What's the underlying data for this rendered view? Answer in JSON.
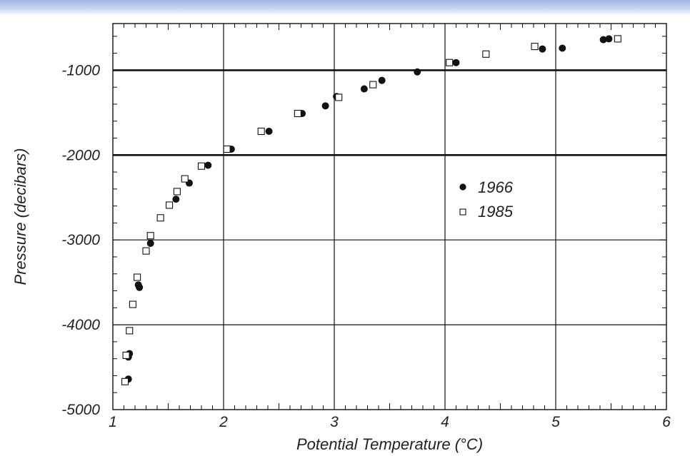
{
  "chart_data": {
    "type": "scatter",
    "xlabel": "Potential Temperature (°C)",
    "ylabel": "Pressure (decibars)",
    "xlim": [
      1,
      6
    ],
    "ylim": [
      -5000,
      -450
    ],
    "x_ticks": [
      "1",
      "2",
      "3",
      "4",
      "5",
      "6"
    ],
    "y_ticks": [
      "-1000",
      "-2000",
      "-3000",
      "-4000",
      "-5000"
    ],
    "grid": true,
    "legend_position": "right-middle",
    "series": [
      {
        "name": "1966",
        "marker": "filled-circle",
        "color": "#111111",
        "points": [
          [
            5.48,
            -630
          ],
          [
            5.43,
            -640
          ],
          [
            5.06,
            -740
          ],
          [
            4.88,
            -750
          ],
          [
            4.1,
            -910
          ],
          [
            3.75,
            -1020
          ],
          [
            3.43,
            -1120
          ],
          [
            3.27,
            -1220
          ],
          [
            3.02,
            -1310
          ],
          [
            2.92,
            -1420
          ],
          [
            2.71,
            -1510
          ],
          [
            2.41,
            -1720
          ],
          [
            2.07,
            -1930
          ],
          [
            1.86,
            -2120
          ],
          [
            1.69,
            -2330
          ],
          [
            1.57,
            -2520
          ],
          [
            1.34,
            -3040
          ],
          [
            1.24,
            -3560
          ],
          [
            1.23,
            -3530
          ],
          [
            1.15,
            -4340
          ],
          [
            1.14,
            -4380
          ],
          [
            1.14,
            -4640
          ]
        ]
      },
      {
        "name": "1985",
        "marker": "open-square",
        "color": "#111111",
        "points": [
          [
            5.56,
            -630
          ],
          [
            4.81,
            -720
          ],
          [
            4.37,
            -810
          ],
          [
            4.04,
            -910
          ],
          [
            3.35,
            -1170
          ],
          [
            3.04,
            -1320
          ],
          [
            2.67,
            -1510
          ],
          [
            2.34,
            -1720
          ],
          [
            2.03,
            -1930
          ],
          [
            1.8,
            -2130
          ],
          [
            1.65,
            -2280
          ],
          [
            1.58,
            -2430
          ],
          [
            1.51,
            -2590
          ],
          [
            1.43,
            -2740
          ],
          [
            1.34,
            -2950
          ],
          [
            1.3,
            -3130
          ],
          [
            1.22,
            -3440
          ],
          [
            1.18,
            -3760
          ],
          [
            1.15,
            -4070
          ],
          [
            1.12,
            -4360
          ],
          [
            1.11,
            -4670
          ]
        ]
      }
    ]
  }
}
